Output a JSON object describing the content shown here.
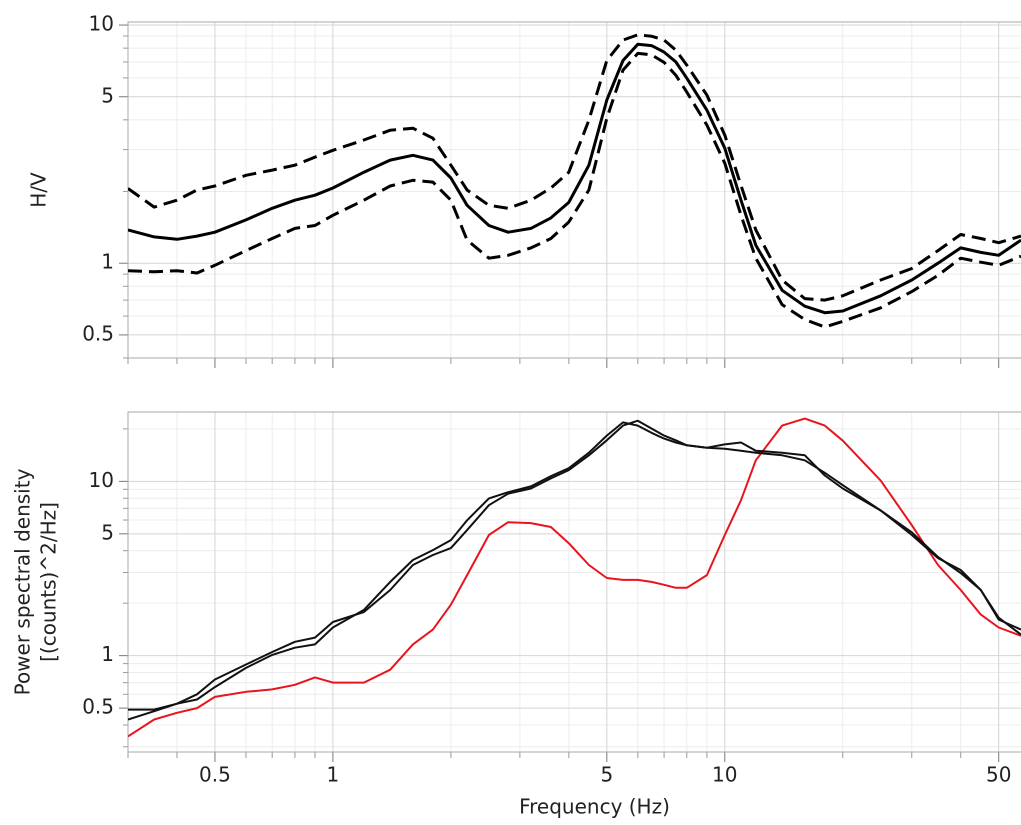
{
  "chart_data": [
    {
      "type": "line",
      "ylabel": [
        "H/V"
      ],
      "log_x": true,
      "log_y": true,
      "grid": true,
      "show_xtick_labels": false,
      "xlim": [
        0.3,
        57
      ],
      "ylim": [
        0.4,
        10.3
      ],
      "xticks": [
        0.5,
        1,
        5,
        10,
        50
      ],
      "yticks": [
        0.5,
        1,
        5,
        10
      ],
      "xminor": [
        0.3,
        0.4,
        0.6,
        0.7,
        0.8,
        0.9,
        2,
        3,
        4,
        6,
        7,
        8,
        9,
        20,
        30,
        40
      ],
      "yminor": [
        0.4,
        0.6,
        0.7,
        0.8,
        0.9,
        2,
        3,
        4,
        6,
        7,
        8,
        9
      ],
      "x": [
        0.3,
        0.35,
        0.4,
        0.45,
        0.5,
        0.6,
        0.7,
        0.8,
        0.9,
        1,
        1.2,
        1.4,
        1.6,
        1.8,
        2,
        2.2,
        2.5,
        2.8,
        3.2,
        3.6,
        4,
        4.5,
        5,
        5.5,
        6,
        6.5,
        7,
        7.5,
        8,
        9,
        10,
        11,
        12,
        14,
        16,
        18,
        20,
        25,
        30,
        35,
        40,
        45,
        50,
        57
      ],
      "series": [
        {
          "color": "#000000",
          "dashed": false,
          "values": [
            1.38,
            1.29,
            1.26,
            1.3,
            1.35,
            1.52,
            1.7,
            1.84,
            1.93,
            2.07,
            2.41,
            2.71,
            2.84,
            2.71,
            2.28,
            1.75,
            1.44,
            1.35,
            1.4,
            1.55,
            1.8,
            2.58,
            4.84,
            7.1,
            8.3,
            8.2,
            7.7,
            7.0,
            5.98,
            4.39,
            3.04,
            1.84,
            1.19,
            0.77,
            0.66,
            0.62,
            0.63,
            0.73,
            0.85,
            1.0,
            1.16,
            1.11,
            1.08,
            1.25
          ]
        },
        {
          "color": "#000000",
          "dashed": true,
          "values": [
            2.06,
            1.72,
            1.84,
            2.03,
            2.11,
            2.34,
            2.46,
            2.58,
            2.79,
            2.98,
            3.29,
            3.62,
            3.69,
            3.35,
            2.58,
            2.03,
            1.75,
            1.7,
            1.84,
            2.07,
            2.41,
            3.99,
            7.1,
            8.65,
            9.1,
            8.98,
            8.65,
            7.85,
            6.79,
            5.08,
            3.45,
            2.12,
            1.38,
            0.85,
            0.71,
            0.7,
            0.73,
            0.85,
            0.95,
            1.13,
            1.32,
            1.27,
            1.22,
            1.3
          ]
        },
        {
          "color": "#000000",
          "dashed": true,
          "values": [
            0.93,
            0.92,
            0.93,
            0.91,
            0.98,
            1.13,
            1.27,
            1.4,
            1.44,
            1.59,
            1.84,
            2.11,
            2.23,
            2.19,
            1.84,
            1.25,
            1.05,
            1.08,
            1.16,
            1.27,
            1.49,
            2.03,
            4.06,
            6.47,
            7.6,
            7.5,
            6.97,
            6.16,
            5.23,
            3.8,
            2.63,
            1.59,
            1.05,
            0.67,
            0.58,
            0.54,
            0.57,
            0.65,
            0.76,
            0.89,
            1.05,
            1.01,
            0.98,
            1.07
          ]
        }
      ]
    },
    {
      "type": "line",
      "ylabel": [
        "Power spectral density",
        "[(counts)^2/Hz]"
      ],
      "xlabel": "Frequency (Hz)",
      "log_x": true,
      "log_y": true,
      "grid": true,
      "show_xtick_labels": true,
      "xlim": [
        0.3,
        57
      ],
      "ylim": [
        0.28,
        25
      ],
      "xticks": [
        0.5,
        1,
        5,
        10,
        50
      ],
      "yticks": [
        0.5,
        1,
        5,
        10
      ],
      "xminor": [
        0.3,
        0.4,
        0.6,
        0.7,
        0.8,
        0.9,
        2,
        3,
        4,
        6,
        7,
        8,
        9,
        20,
        30,
        40
      ],
      "yminor": [
        0.3,
        0.4,
        0.6,
        0.7,
        0.8,
        0.9,
        2,
        3,
        4,
        6,
        7,
        8,
        9,
        20
      ],
      "x": [
        0.3,
        0.35,
        0.4,
        0.45,
        0.5,
        0.6,
        0.7,
        0.8,
        0.9,
        1,
        1.2,
        1.4,
        1.6,
        1.8,
        2,
        2.2,
        2.5,
        2.8,
        3.2,
        3.6,
        4,
        4.5,
        5,
        5.5,
        6,
        6.5,
        7,
        7.5,
        8,
        9,
        10,
        11,
        12,
        14,
        16,
        18,
        20,
        25,
        30,
        35,
        40,
        45,
        50,
        57
      ],
      "series": [
        {
          "color": "#e8141c",
          "dashed": false,
          "values": [
            0.344,
            0.43,
            0.47,
            0.5,
            0.58,
            0.62,
            0.64,
            0.68,
            0.75,
            0.7,
            0.7,
            0.83,
            1.16,
            1.41,
            1.96,
            2.9,
            4.92,
            5.83,
            5.76,
            5.47,
            4.42,
            3.31,
            2.79,
            2.72,
            2.72,
            2.65,
            2.55,
            2.45,
            2.45,
            2.9,
            4.92,
            7.8,
            13.2,
            20.9,
            22.9,
            20.9,
            17.1,
            10.1,
            5.6,
            3.31,
            2.38,
            1.72,
            1.45,
            1.3
          ]
        },
        {
          "color": "#111111",
          "dashed": false,
          "values": [
            0.49,
            0.49,
            0.53,
            0.6,
            0.73,
            0.89,
            1.05,
            1.2,
            1.27,
            1.56,
            1.78,
            2.38,
            3.31,
            3.78,
            4.14,
            5.25,
            7.3,
            8.5,
            9.1,
            10.4,
            11.6,
            14.1,
            17.2,
            20.9,
            22.3,
            20.1,
            18.3,
            17.2,
            16.1,
            15.6,
            15.4,
            15.0,
            14.6,
            14.1,
            13.2,
            11.2,
            9.5,
            6.8,
            4.92,
            3.63,
            3.1,
            2.38,
            1.61,
            1.41
          ]
        },
        {
          "color": "#111111",
          "dashed": false,
          "values": [
            0.43,
            0.48,
            0.53,
            0.56,
            0.66,
            0.85,
            1.01,
            1.11,
            1.16,
            1.45,
            1.83,
            2.65,
            3.54,
            4.03,
            4.6,
            5.98,
            7.98,
            8.66,
            9.36,
            10.7,
            11.9,
            14.6,
            18.3,
            21.8,
            20.9,
            19.0,
            17.6,
            16.7,
            16.1,
            15.6,
            16.3,
            16.7,
            15.0,
            14.6,
            14.1,
            10.8,
            9.1,
            6.8,
            5.1,
            3.68,
            2.98,
            2.38,
            1.65,
            1.32
          ]
        }
      ]
    }
  ]
}
